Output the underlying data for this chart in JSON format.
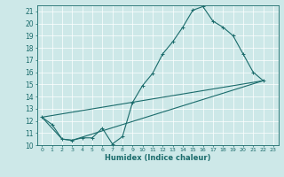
{
  "title": "",
  "xlabel": "Humidex (Indice chaleur)",
  "bg_color": "#cde8e8",
  "grid_color": "#b0d4d4",
  "line_color": "#1a6b6b",
  "xlim": [
    -0.5,
    23.5
  ],
  "ylim": [
    10,
    21.5
  ],
  "yticks": [
    10,
    11,
    12,
    13,
    14,
    15,
    16,
    17,
    18,
    19,
    20,
    21
  ],
  "xticks": [
    0,
    1,
    2,
    3,
    4,
    5,
    6,
    7,
    8,
    9,
    10,
    11,
    12,
    13,
    14,
    15,
    16,
    17,
    18,
    19,
    20,
    21,
    22,
    23
  ],
  "line1_x": [
    0,
    1,
    2,
    3,
    4,
    5,
    6,
    7,
    8,
    9,
    10,
    11,
    12,
    13,
    14,
    15,
    16,
    17,
    18,
    19,
    20,
    21,
    22
  ],
  "line1_y": [
    12.3,
    11.7,
    10.5,
    10.4,
    10.6,
    10.6,
    11.4,
    10.1,
    10.7,
    13.5,
    14.9,
    15.9,
    17.5,
    18.5,
    19.7,
    21.1,
    21.4,
    20.2,
    19.7,
    19.0,
    17.5,
    16.0,
    15.3
  ],
  "line2_x": [
    0,
    2,
    3,
    22
  ],
  "line2_y": [
    12.3,
    10.5,
    10.4,
    15.3
  ],
  "line3_x": [
    0,
    22
  ],
  "line3_y": [
    12.3,
    15.3
  ],
  "lw": 0.8,
  "ms": 2.5,
  "xlabel_fontsize": 6,
  "tick_fontsize": 5
}
